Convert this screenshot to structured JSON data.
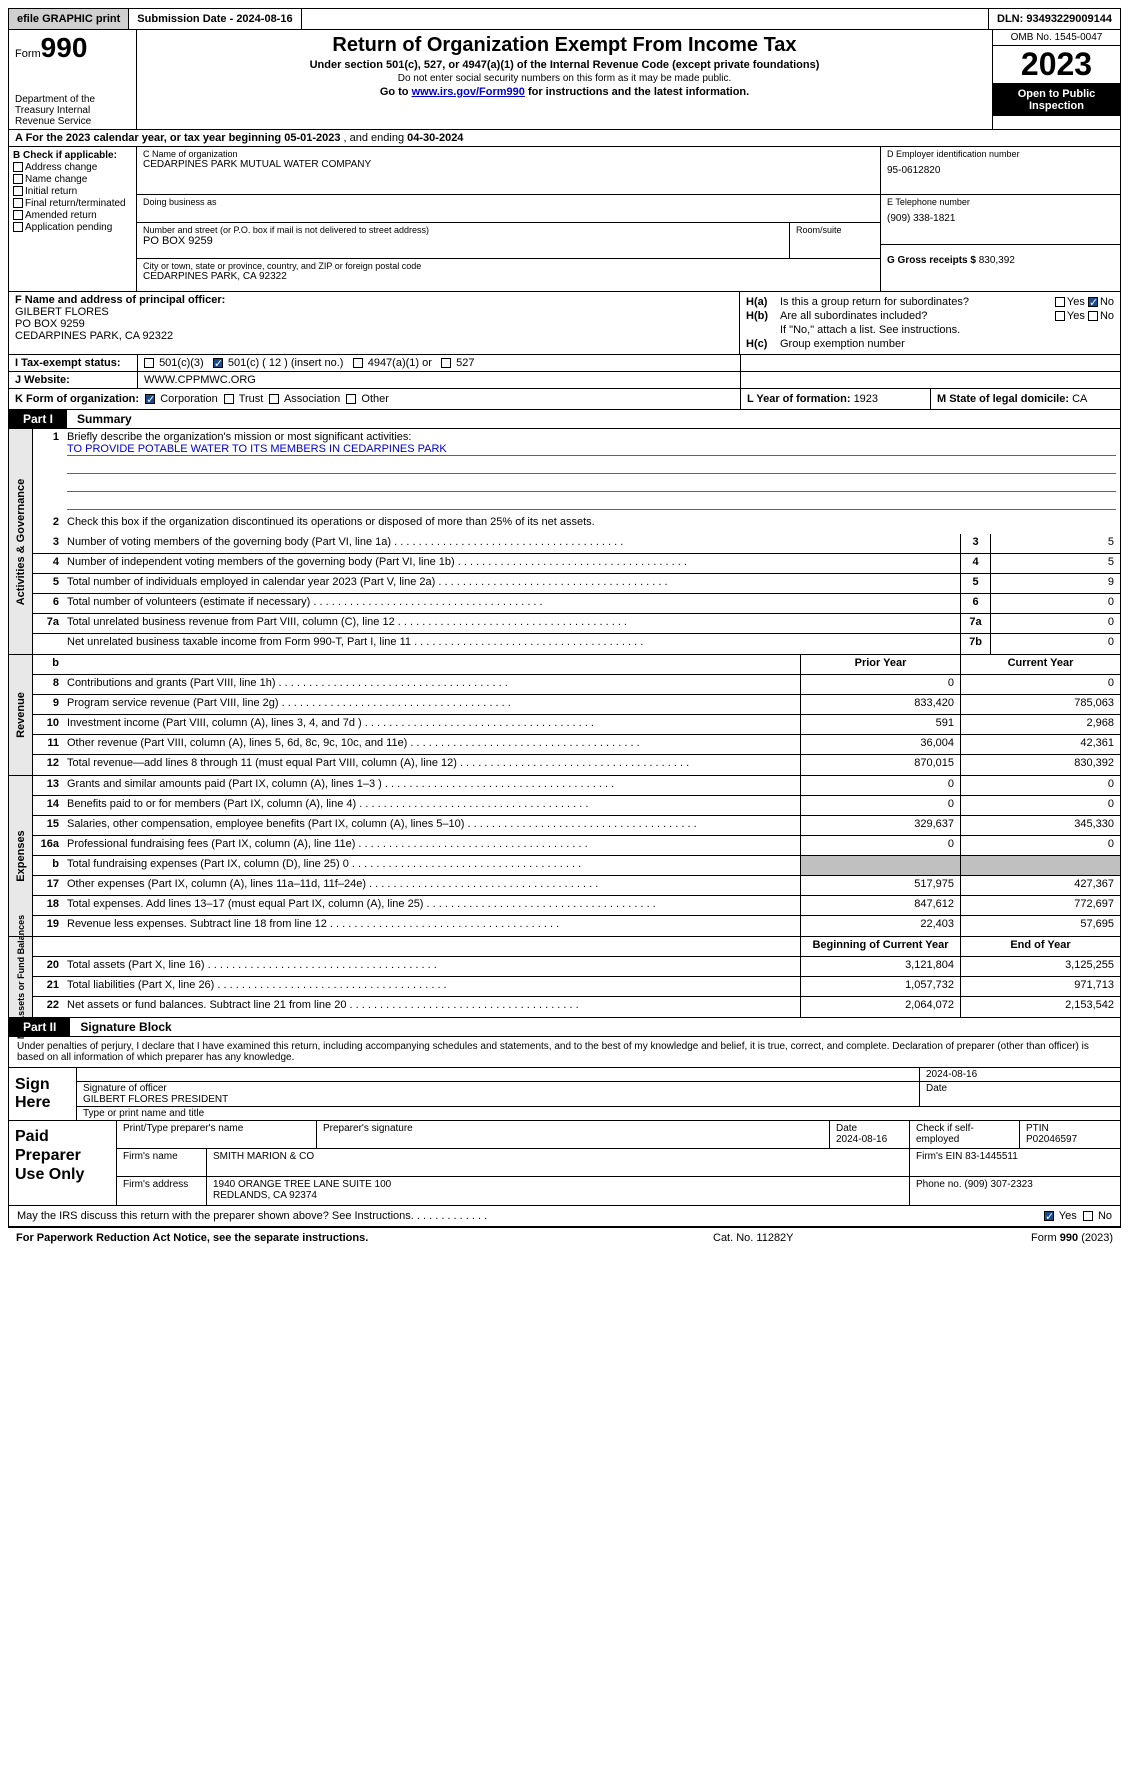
{
  "topbar": {
    "efile": "efile GRAPHIC print",
    "submission_label": "Submission Date - 2024-08-16",
    "dln": "DLN: 93493229009144"
  },
  "header": {
    "form_label": "Form",
    "form_number": "990",
    "dept": "Department of the Treasury\nInternal Revenue Service",
    "title": "Return of Organization Exempt From Income Tax",
    "sub1": "Under section 501(c), 527, or 4947(a)(1) of the Internal Revenue Code (except private foundations)",
    "sub2": "Do not enter social security numbers on this form as it may be made public.",
    "sub3_pre": "Go to ",
    "sub3_link": "www.irs.gov/Form990",
    "sub3_post": " for instructions and the latest information.",
    "omb": "OMB No. 1545-0047",
    "year": "2023",
    "open": "Open to Public Inspection"
  },
  "row_a": {
    "prefix": "A For the 2023 calendar year, or tax year beginning ",
    "begin": "05-01-2023",
    "mid": "    , and ending ",
    "end": "04-30-2024"
  },
  "col_b": {
    "header": "B Check if applicable:",
    "items": [
      "Address change",
      "Name change",
      "Initial return",
      "Final return/terminated",
      "Amended return",
      "Application pending"
    ]
  },
  "col_c": {
    "name_label": "C Name of organization",
    "name": "CEDARPINES PARK MUTUAL WATER COMPANY",
    "dba_label": "Doing business as",
    "dba": "",
    "street_label": "Number and street (or P.O. box if mail is not delivered to street address)",
    "street": "PO BOX 9259",
    "room_label": "Room/suite",
    "city_label": "City or town, state or province, country, and ZIP or foreign postal code",
    "city": "CEDARPINES PARK, CA  92322"
  },
  "col_d": {
    "ein_label": "D Employer identification number",
    "ein": "95-0612820",
    "phone_label": "E Telephone number",
    "phone": "(909) 338-1821",
    "gross_label": "G Gross receipts $ ",
    "gross": "830,392"
  },
  "row_f": {
    "label": "F  Name and address of principal officer:",
    "name": "GILBERT FLORES",
    "street": "PO BOX 9259",
    "city": "CEDARPINES PARK, CA  92322"
  },
  "row_h": {
    "ha_label": "H(a)",
    "ha_text": "Is this a group return for subordinates?",
    "hb_label": "H(b)",
    "hb_text": "Are all subordinates included?",
    "hb_note": "If \"No,\" attach a list. See instructions.",
    "hc_label": "H(c)",
    "hc_text": "Group exemption number",
    "yes": "Yes",
    "no": "No"
  },
  "row_i": {
    "label": "I   Tax-exempt status:",
    "opt1": "501(c)(3)",
    "opt2": "501(c) ( 12 ) (insert no.)",
    "opt3": "4947(a)(1) or",
    "opt4": "527"
  },
  "row_j": {
    "label": "J   Website:",
    "value": "WWW.CPPMWC.ORG"
  },
  "row_k": {
    "label": "K Form of organization:",
    "opts": [
      "Corporation",
      "Trust",
      "Association",
      "Other"
    ],
    "l_label": "L Year of formation: ",
    "l_val": "1923",
    "m_label": "M State of legal domicile: ",
    "m_val": "CA"
  },
  "part1": {
    "tab": "Part I",
    "title": "Summary"
  },
  "governance": {
    "sidebar": "Activities & Governance",
    "line1_label": "Briefly describe the organization's mission or most significant activities:",
    "line1_text": "TO PROVIDE POTABLE WATER TO ITS MEMBERS IN CEDARPINES PARK",
    "line2": "Check this box         if the organization discontinued its operations or disposed of more than 25% of its net assets.",
    "lines": [
      {
        "n": "3",
        "d": "Number of voting members of the governing body (Part VI, line 1a)",
        "box": "3",
        "v": "5"
      },
      {
        "n": "4",
        "d": "Number of independent voting members of the governing body (Part VI, line 1b)",
        "box": "4",
        "v": "5"
      },
      {
        "n": "5",
        "d": "Total number of individuals employed in calendar year 2023 (Part V, line 2a)",
        "box": "5",
        "v": "9"
      },
      {
        "n": "6",
        "d": "Total number of volunteers (estimate if necessary)",
        "box": "6",
        "v": "0"
      },
      {
        "n": "7a",
        "d": "Total unrelated business revenue from Part VIII, column (C), line 12",
        "box": "7a",
        "v": "0"
      },
      {
        "n": "",
        "d": "Net unrelated business taxable income from Form 990-T, Part I, line 11",
        "box": "7b",
        "v": "0"
      }
    ]
  },
  "revenue": {
    "sidebar": "Revenue",
    "header": {
      "b": "b",
      "prior": "Prior Year",
      "current": "Current Year"
    },
    "lines": [
      {
        "n": "8",
        "d": "Contributions and grants (Part VIII, line 1h)",
        "p": "0",
        "c": "0"
      },
      {
        "n": "9",
        "d": "Program service revenue (Part VIII, line 2g)",
        "p": "833,420",
        "c": "785,063"
      },
      {
        "n": "10",
        "d": "Investment income (Part VIII, column (A), lines 3, 4, and 7d )",
        "p": "591",
        "c": "2,968"
      },
      {
        "n": "11",
        "d": "Other revenue (Part VIII, column (A), lines 5, 6d, 8c, 9c, 10c, and 11e)",
        "p": "36,004",
        "c": "42,361"
      },
      {
        "n": "12",
        "d": "Total revenue—add lines 8 through 11 (must equal Part VIII, column (A), line 12)",
        "p": "870,015",
        "c": "830,392"
      }
    ]
  },
  "expenses": {
    "sidebar": "Expenses",
    "lines": [
      {
        "n": "13",
        "d": "Grants and similar amounts paid (Part IX, column (A), lines 1–3 )",
        "p": "0",
        "c": "0"
      },
      {
        "n": "14",
        "d": "Benefits paid to or for members (Part IX, column (A), line 4)",
        "p": "0",
        "c": "0"
      },
      {
        "n": "15",
        "d": "Salaries, other compensation, employee benefits (Part IX, column (A), lines 5–10)",
        "p": "329,637",
        "c": "345,330"
      },
      {
        "n": "16a",
        "d": "Professional fundraising fees (Part IX, column (A), line 11e)",
        "p": "0",
        "c": "0"
      },
      {
        "n": "b",
        "d": "Total fundraising expenses (Part IX, column (D), line 25) 0",
        "p": "",
        "c": "",
        "shaded": true
      },
      {
        "n": "17",
        "d": "Other expenses (Part IX, column (A), lines 11a–11d, 11f–24e)",
        "p": "517,975",
        "c": "427,367"
      },
      {
        "n": "18",
        "d": "Total expenses. Add lines 13–17 (must equal Part IX, column (A), line 25)",
        "p": "847,612",
        "c": "772,697"
      },
      {
        "n": "19",
        "d": "Revenue less expenses. Subtract line 18 from line 12",
        "p": "22,403",
        "c": "57,695"
      }
    ]
  },
  "netassets": {
    "sidebar": "Net Assets or Fund Balances",
    "header": {
      "begin": "Beginning of Current Year",
      "end": "End of Year"
    },
    "lines": [
      {
        "n": "20",
        "d": "Total assets (Part X, line 16)",
        "p": "3,121,804",
        "c": "3,125,255"
      },
      {
        "n": "21",
        "d": "Total liabilities (Part X, line 26)",
        "p": "1,057,732",
        "c": "971,713"
      },
      {
        "n": "22",
        "d": "Net assets or fund balances. Subtract line 21 from line 20",
        "p": "2,064,072",
        "c": "2,153,542"
      }
    ]
  },
  "part2": {
    "tab": "Part II",
    "title": "Signature Block"
  },
  "sig_intro": "Under penalties of perjury, I declare that I have examined this return, including accompanying schedules and statements, and to the best of my knowledge and belief, it is true, correct, and complete. Declaration of preparer (other than officer) is based on all information of which preparer has any knowledge.",
  "sign": {
    "label": "Sign Here",
    "date": "2024-08-16",
    "sig_label": "Signature of officer",
    "name": "GILBERT FLORES  PRESIDENT",
    "date_label": "Date",
    "type_label": "Type or print name and title"
  },
  "paid": {
    "label": "Paid Preparer Use Only",
    "h1": "Print/Type preparer's name",
    "h2": "Preparer's signature",
    "h3": "Date",
    "h3v": "2024-08-16",
    "h4": "Check         if self-employed",
    "h5": "PTIN",
    "h5v": "P02046597",
    "firm_label": "Firm's name",
    "firm": "SMITH MARION & CO",
    "ein_label": "Firm's EIN",
    "ein": "83-1445511",
    "addr_label": "Firm's address",
    "addr1": "1940 ORANGE TREE LANE SUITE 100",
    "addr2": "REDLANDS, CA  92374",
    "phone_label": "Phone no.",
    "phone": "(909) 307-2323"
  },
  "may_irs": {
    "text": "May the IRS discuss this return with the preparer shown above? See Instructions.",
    "yes": "Yes",
    "no": "No"
  },
  "footer": {
    "left": "For Paperwork Reduction Act Notice, see the separate instructions.",
    "mid": "Cat. No. 11282Y",
    "right_pre": "Form ",
    "right_form": "990",
    "right_post": " (2023)"
  }
}
